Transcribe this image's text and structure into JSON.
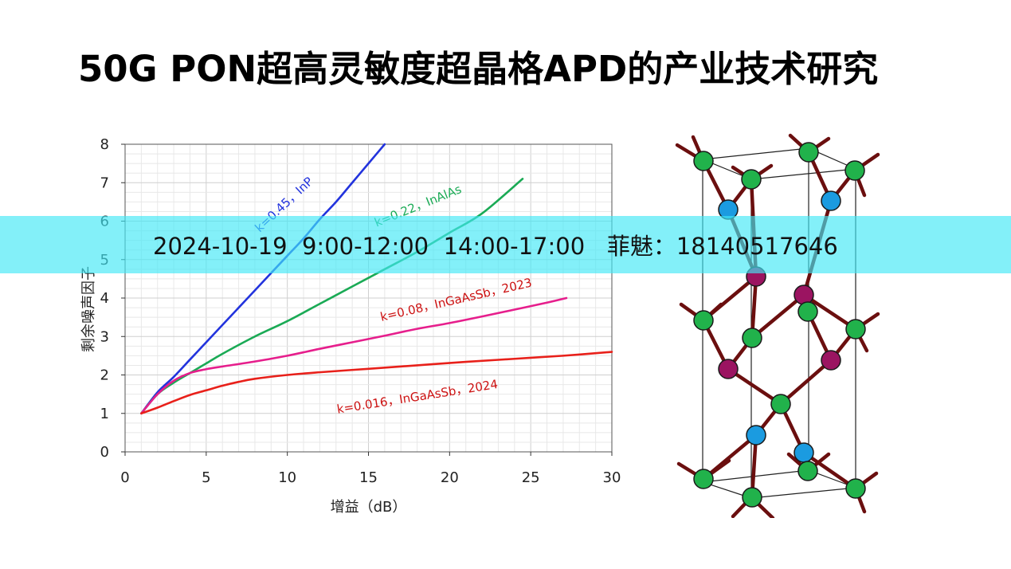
{
  "slide": {
    "title": "50G PON超高灵敏度超晶格APD的产业技术研究"
  },
  "banner": {
    "text": "2024-10-19  9:00-12:00  14:00-17:00   菲魅：18140517646"
  },
  "colors": {
    "inp": "#2233dd",
    "inalas": "#1aaa55",
    "ingaassb_2023": "#e61e8c",
    "ingaassb_2024": "#e8201a",
    "label_red": "#cc1111",
    "atom_green": "#21b24b",
    "atom_blue": "#1b9be0",
    "atom_magenta": "#9b1461",
    "bond": "#6b0f0f",
    "banner": "#40e8f6"
  },
  "chart_data": {
    "type": "line",
    "xlabel": "增益（dB）",
    "ylabel": "剩余噪声因子",
    "xlim": [
      0,
      30
    ],
    "ylim": [
      0,
      8
    ],
    "xticks": [
      0,
      5,
      10,
      15,
      20,
      25,
      30
    ],
    "yticks": [
      0,
      1,
      2,
      3,
      4,
      5,
      6,
      7,
      8
    ],
    "grid": true,
    "series": [
      {
        "name": "k=0.45，InP",
        "color": "#2233dd",
        "x": [
          1,
          2,
          3,
          4,
          5,
          6,
          7,
          8,
          9,
          10,
          11,
          12,
          13,
          14,
          15,
          16
        ],
        "y": [
          1.0,
          1.55,
          1.95,
          2.4,
          2.85,
          3.3,
          3.75,
          4.2,
          4.65,
          5.1,
          5.55,
          6.05,
          6.5,
          7.0,
          7.5,
          8.0
        ]
      },
      {
        "name": "k=0.22，InAlAs",
        "color": "#1aaa55",
        "x": [
          1,
          2,
          3,
          4,
          5,
          6,
          8,
          10,
          12,
          14,
          16,
          18,
          20,
          22,
          24.5
        ],
        "y": [
          1.0,
          1.5,
          1.8,
          2.05,
          2.3,
          2.55,
          3.0,
          3.4,
          3.85,
          4.3,
          4.75,
          5.2,
          5.7,
          6.2,
          7.1
        ]
      },
      {
        "name": "k=0.08，InGaAsSb，2023",
        "color": "#e61e8c",
        "x": [
          1,
          2,
          3,
          4,
          5,
          6,
          8,
          10,
          12,
          14,
          16,
          18,
          20,
          22,
          24,
          26,
          27.2
        ],
        "y": [
          1.0,
          1.5,
          1.85,
          2.05,
          2.15,
          2.22,
          2.35,
          2.5,
          2.68,
          2.85,
          3.02,
          3.2,
          3.35,
          3.52,
          3.7,
          3.88,
          4.0
        ]
      },
      {
        "name": "k=0.016，InGaAsSb，2024",
        "color": "#e8201a",
        "x": [
          1,
          2,
          3,
          4,
          5,
          6,
          7,
          8,
          10,
          12,
          15,
          18,
          21,
          24,
          27,
          30
        ],
        "y": [
          1.0,
          1.15,
          1.32,
          1.48,
          1.6,
          1.72,
          1.82,
          1.9,
          2.0,
          2.07,
          2.16,
          2.25,
          2.34,
          2.42,
          2.5,
          2.6
        ]
      }
    ],
    "annotations": [
      {
        "text": "k=0.45，InP",
        "x": 8.3,
        "y": 5.7,
        "angle": -43,
        "color": "#2233dd"
      },
      {
        "text": "k=0.22，InAlAs",
        "x": 15.5,
        "y": 5.85,
        "angle": -22,
        "color": "#1aaa55"
      },
      {
        "text": "k=0.08，InGaAsSb，2023",
        "x": 15.8,
        "y": 3.4,
        "angle": -13,
        "color": "#cc1111"
      },
      {
        "text": "k=0.016，InGaAsSb，2024",
        "x": 13.1,
        "y": 1.0,
        "angle": -9,
        "color": "#cc1111"
      }
    ]
  }
}
